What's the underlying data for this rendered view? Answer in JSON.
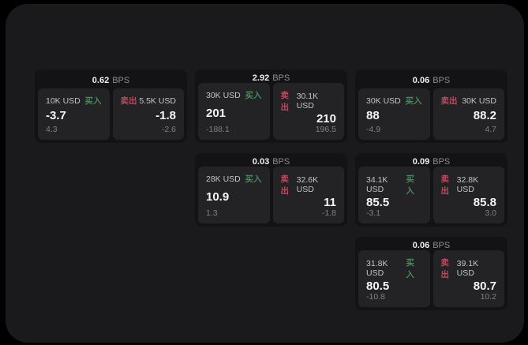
{
  "labels": {
    "bps": "BPS",
    "buy": "买入",
    "sell": "卖出"
  },
  "colors": {
    "page_bg": "#000000",
    "panel_bg": "#1a1a1c",
    "card_bg": "#131315",
    "tile_bg": "#232326",
    "buy": "#47895a",
    "sell": "#bc4a5e"
  },
  "cards": [
    {
      "bps": "0.62",
      "buy": {
        "amount": "10K USD",
        "value": "-3.7",
        "delta": "4.3"
      },
      "sell": {
        "amount": "5.5K USD",
        "value": "-1.8",
        "delta": "-2.6"
      }
    },
    {
      "bps": "2.92",
      "buy": {
        "amount": "30K USD",
        "value": "201",
        "delta": "-188.1"
      },
      "sell": {
        "amount": "30.1K USD",
        "value": "210",
        "delta": "196.5"
      }
    },
    {
      "bps": "0.06",
      "buy": {
        "amount": "30K USD",
        "value": "88",
        "delta": "-4.9"
      },
      "sell": {
        "amount": "30K USD",
        "value": "88.2",
        "delta": "4.7"
      }
    },
    {
      "bps": "0.03",
      "buy": {
        "amount": "28K USD",
        "value": "10.9",
        "delta": "1.3"
      },
      "sell": {
        "amount": "32.6K USD",
        "value": "11",
        "delta": "-1.8"
      }
    },
    {
      "bps": "0.09",
      "buy": {
        "amount": "34.1K USD",
        "value": "85.5",
        "delta": "-3.1"
      },
      "sell": {
        "amount": "32.8K USD",
        "value": "85.8",
        "delta": "3.0"
      }
    },
    {
      "bps": "0.06",
      "buy": {
        "amount": "31.8K USD",
        "value": "80.5",
        "delta": "-10.8"
      },
      "sell": {
        "amount": "39.1K USD",
        "value": "80.7",
        "delta": "10.2"
      }
    }
  ]
}
